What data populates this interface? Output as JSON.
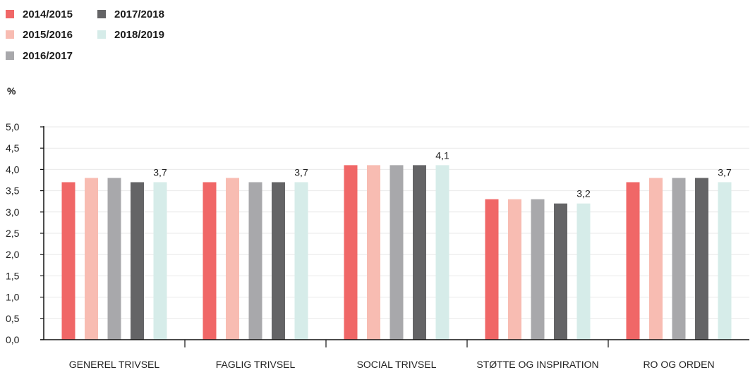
{
  "chart_data": {
    "type": "bar",
    "unit_label": "%",
    "categories": [
      "GENEREL TRIVSEL",
      "FAGLIG TRIVSEL",
      "SOCIAL TRIVSEL",
      "STØTTE OG INSPIRATION",
      "RO OG ORDEN"
    ],
    "series": [
      {
        "name": "2014/2015",
        "color": "#f06767",
        "values": [
          3.7,
          3.7,
          4.1,
          3.3,
          3.7
        ]
      },
      {
        "name": "2015/2016",
        "color": "#f8bcb2",
        "values": [
          3.8,
          3.8,
          4.1,
          3.3,
          3.8
        ]
      },
      {
        "name": "2016/2017",
        "color": "#a8a8ab",
        "values": [
          3.8,
          3.7,
          4.1,
          3.3,
          3.8
        ]
      },
      {
        "name": "2017/2018",
        "color": "#646466",
        "values": [
          3.7,
          3.7,
          4.1,
          3.2,
          3.8
        ]
      },
      {
        "name": "2018/2019",
        "color": "#d6ece9",
        "values": [
          3.7,
          3.7,
          4.1,
          3.2,
          3.7
        ]
      }
    ],
    "data_labels": [
      "3,7",
      "3,7",
      "4,1",
      "3,2",
      "3,7"
    ],
    "y_ticks": [
      "0,0",
      "0,5",
      "1,0",
      "1,5",
      "2,0",
      "2,5",
      "3,0",
      "3,5",
      "4,0",
      "4,5",
      "5,0"
    ],
    "ylim": [
      0,
      5
    ],
    "grid": true,
    "legend_position": "top-left"
  }
}
